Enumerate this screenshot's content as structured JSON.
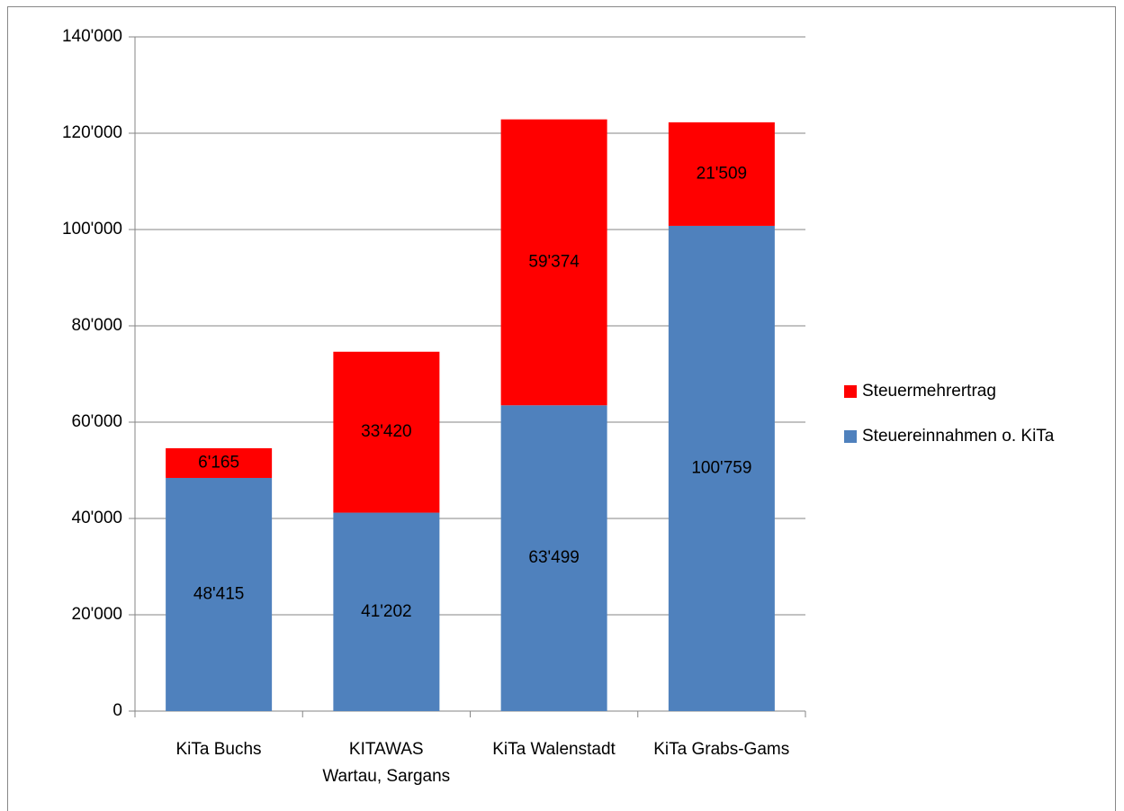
{
  "chart_data": {
    "type": "stacked_bar",
    "categories": [
      "KiTa Buchs",
      "KITAWAS\nWartau, Sargans",
      "KiTa Walenstadt",
      "KiTa Grabs-Gams"
    ],
    "series": [
      {
        "name": "Steuereinnahmen o. KiTa",
        "color": "#4f81bd",
        "values": [
          48415,
          41202,
          63499,
          100759
        ],
        "value_labels": [
          "48'415",
          "41'202",
          "63'499",
          "100'759"
        ]
      },
      {
        "name": "Steuermehrertrag",
        "color": "#ff0000",
        "values": [
          6165,
          33420,
          59374,
          21509
        ],
        "value_labels": [
          "6'165",
          "33'420",
          "59'374",
          "21'509"
        ]
      }
    ],
    "ylim": [
      0,
      140000
    ],
    "yticks": [
      0,
      {
        "value": 20000,
        "label": "20'000"
      },
      {
        "value": 40000,
        "label": "40'000"
      },
      {
        "value": 60000,
        "label": "60'000"
      },
      {
        "value": 80000,
        "label": "80'000"
      },
      {
        "value": 100000,
        "label": "100'000"
      },
      {
        "value": 120000,
        "label": "120'000"
      },
      {
        "value": 140000,
        "label": "140'000"
      }
    ],
    "grid": true,
    "legend": "right"
  }
}
